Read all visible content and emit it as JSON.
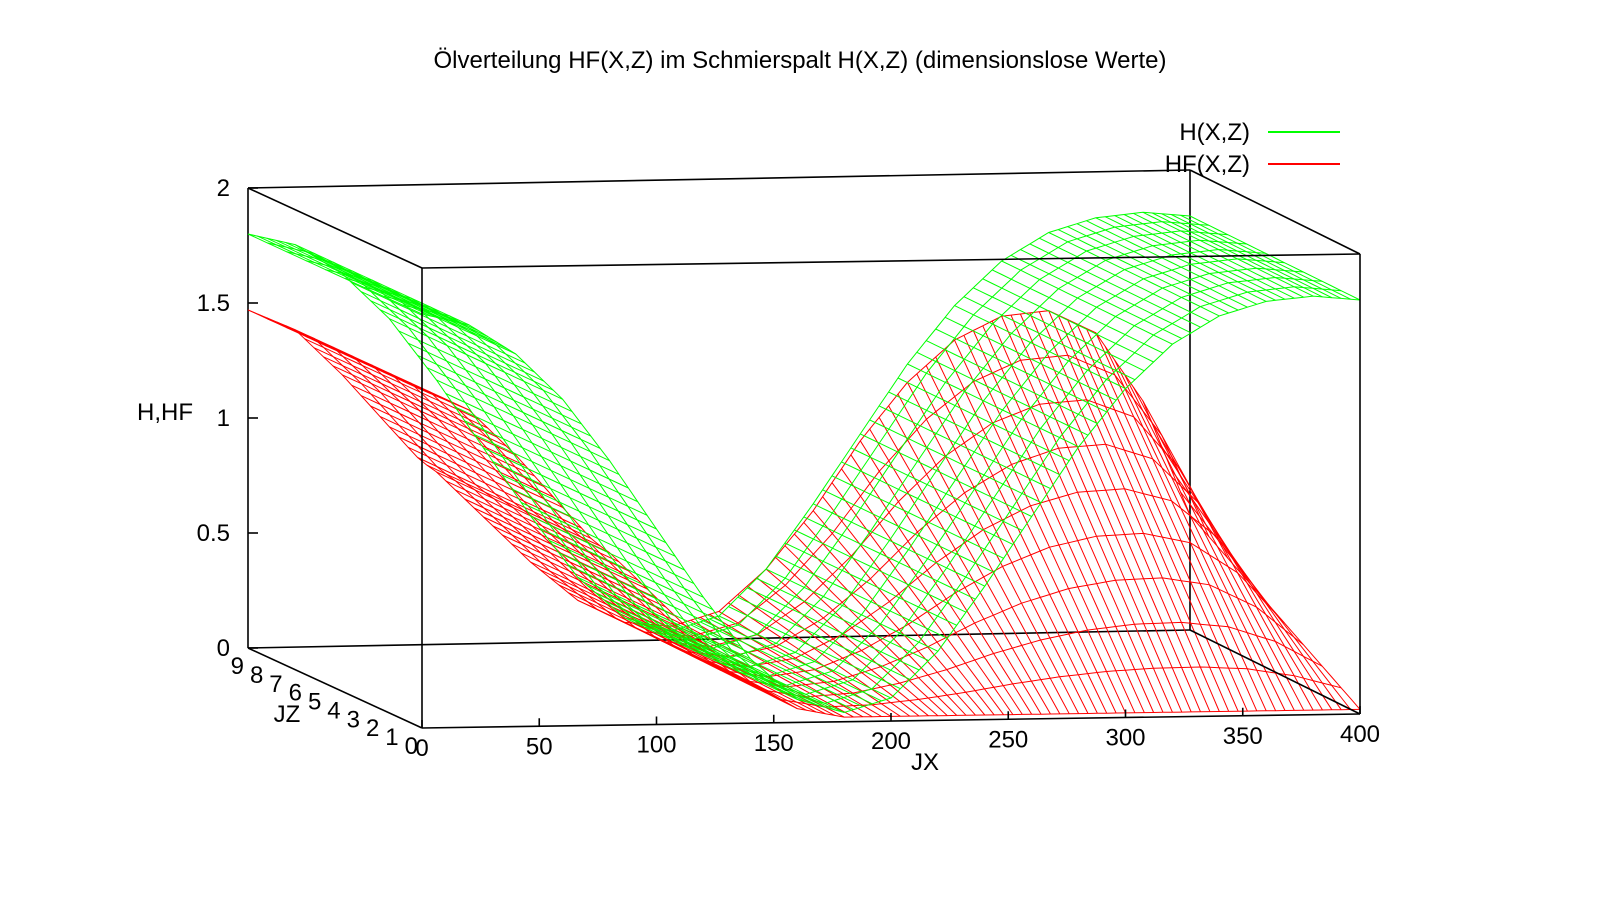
{
  "chart_data": {
    "type": "surface3d",
    "title": "Ölverteilung HF(X,Z) im Schmierspalt H(X,Z) (dimensionslose Werte)",
    "xlabel": "JX",
    "ylabel": "JZ",
    "zlabel": "H,HF",
    "xlim": [
      0,
      400
    ],
    "ylim": [
      0,
      9
    ],
    "zlim": [
      0,
      2
    ],
    "x_ticks": [
      "0",
      "50",
      "100",
      "150",
      "200",
      "250",
      "300",
      "350",
      "400"
    ],
    "y_ticks": [
      "0",
      "1",
      "2",
      "3",
      "4",
      "5",
      "6",
      "7",
      "8",
      "9"
    ],
    "z_ticks": [
      "0",
      "0.5",
      "1",
      "1.5",
      "2"
    ],
    "legend_position": "top-right",
    "series": [
      {
        "name": "H(X,Z)",
        "color": "#00ff00",
        "x": [
          0,
          20,
          40,
          60,
          80,
          100,
          120,
          140,
          160,
          180,
          200,
          220,
          240,
          260,
          280,
          300,
          320,
          340,
          360,
          380,
          400
        ],
        "values": [
          1.8,
          1.75,
          1.62,
          1.42,
          1.15,
          0.85,
          0.55,
          0.28,
          0.1,
          0.04,
          0.1,
          0.3,
          0.58,
          0.88,
          1.18,
          1.43,
          1.62,
          1.74,
          1.8,
          1.82,
          1.8
        ]
      },
      {
        "name": "HF(X,Z)",
        "color": "#ff0000",
        "x": [
          0,
          20,
          40,
          60,
          75,
          77,
          100,
          120,
          140,
          160,
          180,
          200,
          220,
          240,
          260,
          280,
          300,
          320,
          340,
          360,
          380,
          400
        ],
        "values": [
          1.47,
          1.38,
          1.18,
          0.95,
          0.78,
          0.78,
          0.55,
          0.35,
          0.18,
          0.06,
          0.02,
          0.02,
          0.02,
          0.02,
          0.02,
          0.02,
          0.02,
          0.02,
          0.02,
          0.02,
          0.02,
          0.02
        ],
        "values_back": [
          1.47,
          1.38,
          1.18,
          0.95,
          0.78,
          0.78,
          0.55,
          0.35,
          0.18,
          0.08,
          0.06,
          0.12,
          0.3,
          0.55,
          0.85,
          1.1,
          1.28,
          1.38,
          1.4,
          1.3,
          1.0,
          0.5
        ]
      }
    ]
  }
}
